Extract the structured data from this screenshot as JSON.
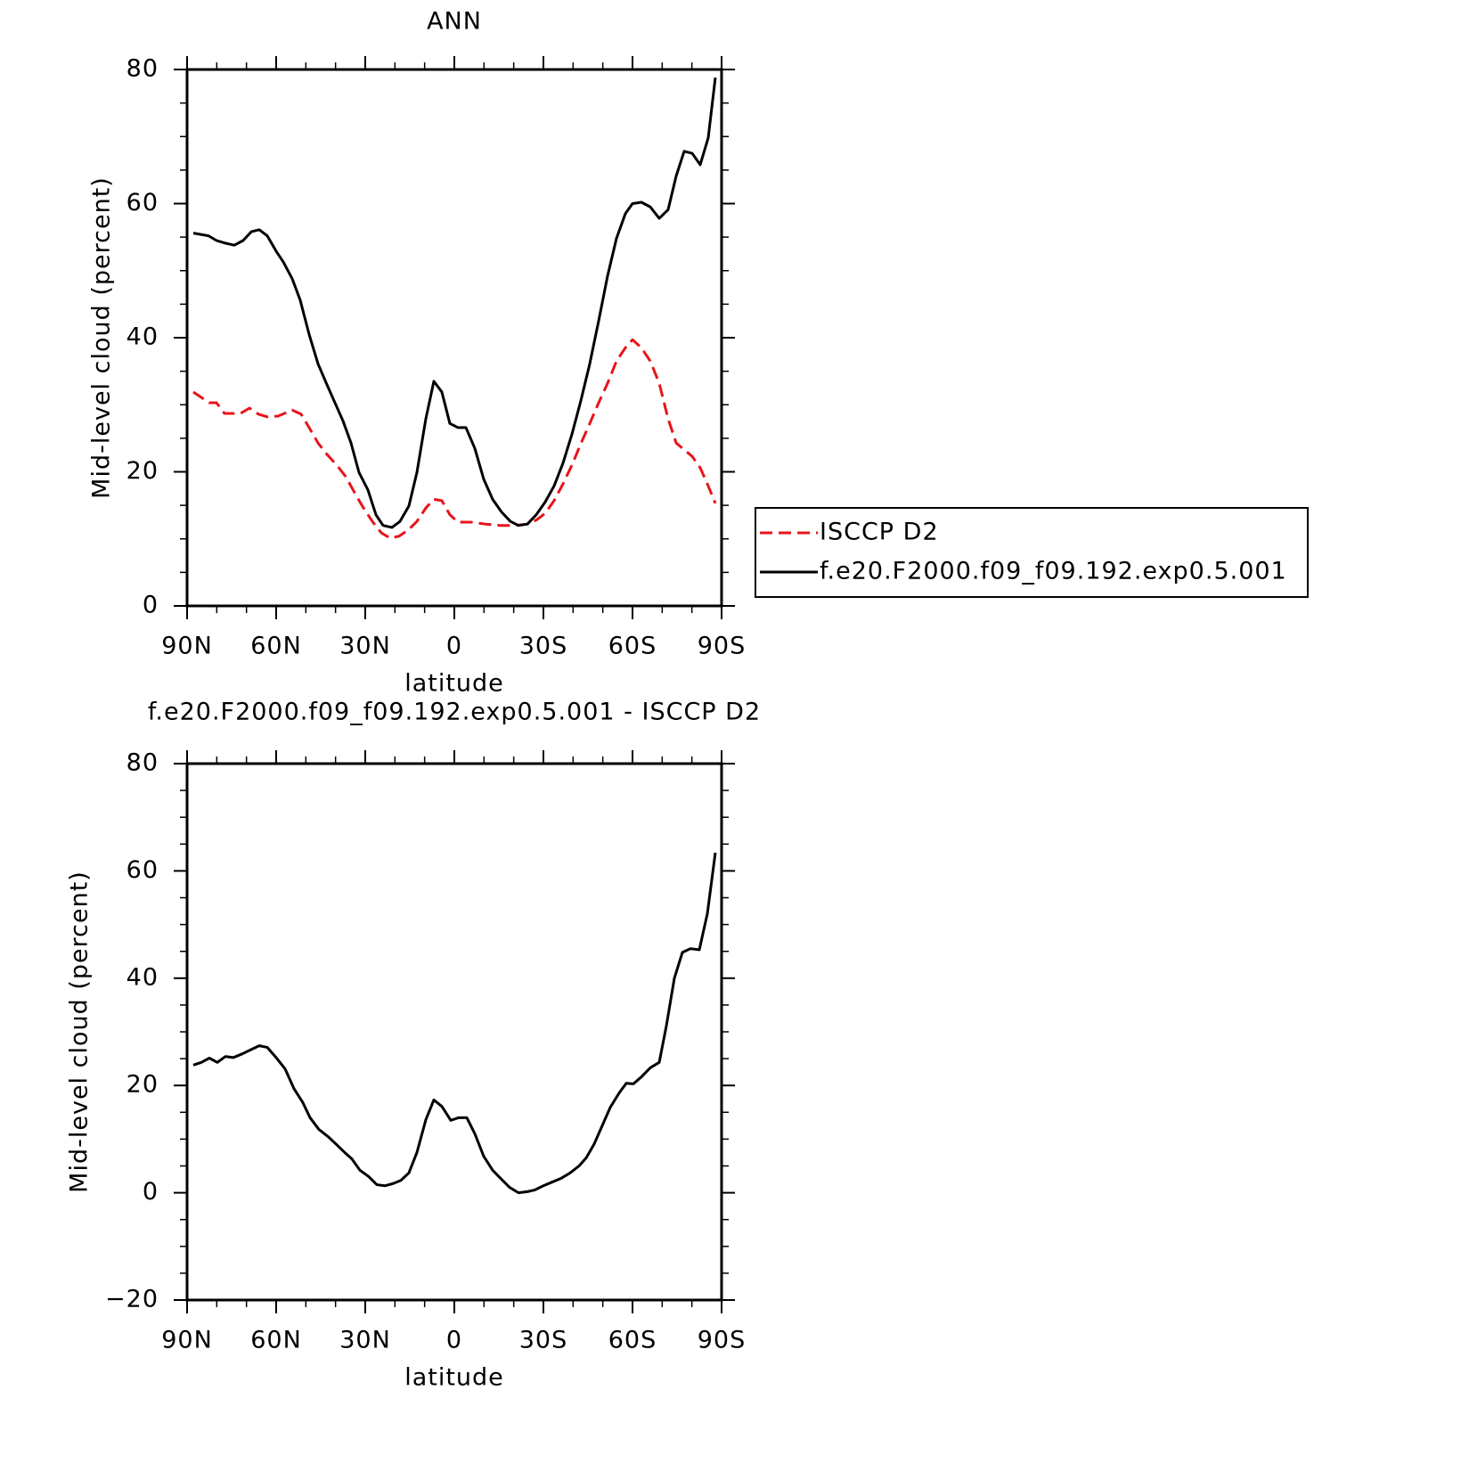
{
  "chart_data": [
    {
      "type": "line",
      "title": "ANN",
      "xlabel": "latitude",
      "ylabel": "Mid-level cloud (percent)",
      "xlim": [
        90,
        -90
      ],
      "ylim": [
        0,
        80
      ],
      "xticks": [
        {
          "value": 90,
          "label": "90N"
        },
        {
          "value": 60,
          "label": "60N"
        },
        {
          "value": 30,
          "label": "30N"
        },
        0,
        {
          "value": -30,
          "label": "30S"
        },
        {
          "value": -60,
          "label": "60S"
        },
        {
          "value": -90,
          "label": "90S"
        }
      ],
      "xminorticks": [
        80,
        70,
        50,
        40,
        20,
        10,
        -10,
        -20,
        -40,
        -50,
        -70,
        -80
      ],
      "yticks": [
        0,
        20,
        40,
        60,
        80
      ],
      "yminorticks": [
        5,
        10,
        15,
        25,
        30,
        35,
        45,
        50,
        55,
        65,
        70,
        75
      ],
      "legend": "right",
      "series": [
        {
          "name": "ISCCP D2",
          "color": "#e8141a",
          "dash": true,
          "x": [
            87.9,
            82.5,
            80.1,
            77.4,
            72,
            69,
            66,
            63,
            59.4,
            54.6,
            51.6,
            48.9,
            45.9,
            42.9,
            39.6,
            36.6,
            33.6,
            30.6,
            27.6,
            24.6,
            21.6,
            18.6,
            15.6,
            12.6,
            9.6,
            6.9,
            4.2,
            1.5,
            -1.2,
            -5.4,
            -10.5,
            -15.6,
            -20.4,
            -24.6,
            -27.6,
            -30.6,
            -33.6,
            -36.6,
            -39.6,
            -42.6,
            -45.6,
            -48.6,
            -51.6,
            -54.6,
            -57.6,
            -60,
            -63,
            -66,
            -69,
            -72,
            -74.7,
            -77.4,
            -80.1,
            -82.8,
            -85.5,
            -87.9
          ],
          "values": [
            31.9,
            30.3,
            30.3,
            28.7,
            28.7,
            29.5,
            28.6,
            28.2,
            28.3,
            29.2,
            28.6,
            26.6,
            24.3,
            22.6,
            21.0,
            19.3,
            16.9,
            14.6,
            12.6,
            10.9,
            10.1,
            10.4,
            11.3,
            12.6,
            14.6,
            15.9,
            15.7,
            13.6,
            12.5,
            12.5,
            12.2,
            12.0,
            12.0,
            12.2,
            12.8,
            13.8,
            15.7,
            18.2,
            21.0,
            24.2,
            27.2,
            30.3,
            33.2,
            36.5,
            38.5,
            39.7,
            38.5,
            36.5,
            33.2,
            27.9,
            24.3,
            23.3,
            22.3,
            20.6,
            17.9,
            15.3
          ]
        },
        {
          "name": "f.e20.F2000.f09_f09.192.exp0.5.001",
          "color": "#000000",
          "dash": false,
          "x": [
            87.9,
            82.8,
            80.1,
            77.1,
            74.1,
            71.1,
            68.4,
            65.7,
            63,
            60,
            57.6,
            54.6,
            51.9,
            48.9,
            45.9,
            42.9,
            37.5,
            34.8,
            32.1,
            29.1,
            26.4,
            24,
            21,
            18.3,
            15.3,
            12.6,
            9.6,
            6.9,
            4.2,
            1.5,
            -1.2,
            -3.9,
            -6.9,
            -9.9,
            -12.9,
            -15.9,
            -18.9,
            -21.6,
            -24.6,
            -27.6,
            -30.6,
            -33.6,
            -36.6,
            -39.6,
            -42.6,
            -45.6,
            -48.6,
            -51.6,
            -54.6,
            -57.6,
            -60,
            -63,
            -66,
            -69,
            -72,
            -74.7,
            -77.4,
            -80.1,
            -82.8,
            -85.5,
            -87.9
          ],
          "values": [
            55.6,
            55.2,
            54.5,
            54.1,
            53.8,
            54.5,
            55.8,
            56.1,
            55.2,
            52.9,
            51.3,
            48.8,
            45.6,
            40.5,
            36.1,
            33.0,
            27.6,
            24.3,
            19.9,
            17.3,
            13.6,
            12.0,
            11.7,
            12.6,
            14.9,
            19.9,
            27.9,
            33.5,
            31.9,
            27.2,
            26.6,
            26.6,
            23.5,
            18.9,
            15.9,
            14.0,
            12.6,
            12.0,
            12.2,
            13.6,
            15.5,
            17.9,
            21.3,
            25.6,
            30.6,
            36.1,
            42.5,
            49.2,
            54.8,
            58.5,
            60.0,
            60.2,
            59.5,
            57.8,
            59.1,
            64.1,
            67.8,
            67.5,
            65.8,
            69.8,
            78.8
          ]
        }
      ]
    },
    {
      "type": "line",
      "title": "f.e20.F2000.f09_f09.192.exp0.5.001 - ISCCP D2",
      "xlabel": "latitude",
      "ylabel": "Mid-level cloud (percent)",
      "xlim": [
        90,
        -90
      ],
      "ylim": [
        -20,
        80
      ],
      "xticks": [
        {
          "value": 90,
          "label": "90N"
        },
        {
          "value": 60,
          "label": "60N"
        },
        {
          "value": 30,
          "label": "30N"
        },
        0,
        {
          "value": -30,
          "label": "30S"
        },
        {
          "value": -60,
          "label": "60S"
        },
        {
          "value": -90,
          "label": "90S"
        }
      ],
      "xminorticks": [
        80,
        70,
        50,
        40,
        20,
        10,
        -10,
        -20,
        -40,
        -50,
        -70,
        -80
      ],
      "yticks": [
        {
          "value": -20,
          "label": "−20"
        },
        0,
        20,
        40,
        60,
        80
      ],
      "yminorticks": [
        -15,
        -10,
        -5,
        5,
        10,
        15,
        25,
        30,
        35,
        45,
        50,
        55,
        65,
        70,
        75
      ],
      "series": [
        {
          "color": "#000000",
          "dash": false,
          "x": [
            87.9,
            85.2,
            82.5,
            79.8,
            77.1,
            74.4,
            71.4,
            68.4,
            65.7,
            63,
            60,
            57,
            54,
            51,
            48.6,
            45.6,
            42.6,
            39.9,
            36.9,
            34.5,
            31.8,
            28.8,
            26.1,
            23.4,
            20.7,
            18,
            15.3,
            12.6,
            9.6,
            6.9,
            4.2,
            1.2,
            -1.5,
            -4.2,
            -6.9,
            -9.9,
            -12.9,
            -15.9,
            -18.6,
            -21.6,
            -24.6,
            -27,
            -30,
            -33,
            -36,
            -39,
            -42,
            -44.4,
            -47.1,
            -49.8,
            -52.5,
            -55.5,
            -57.9,
            -60.3,
            -63,
            -66,
            -69,
            -71.4,
            -74.1,
            -76.8,
            -79.5,
            -82.5,
            -85.2,
            -87.9
          ],
          "values": [
            23.8,
            24.3,
            25.1,
            24.3,
            25.4,
            25.2,
            25.9,
            26.7,
            27.4,
            27.1,
            25.2,
            23.1,
            19.4,
            16.8,
            14.0,
            11.8,
            10.5,
            9.1,
            7.5,
            6.3,
            4.2,
            3.0,
            1.5,
            1.3,
            1.7,
            2.3,
            3.7,
            7.5,
            13.6,
            17.3,
            16.1,
            13.5,
            14.0,
            14.0,
            11.0,
            6.8,
            4.2,
            2.5,
            1.0,
            0.0,
            0.2,
            0.5,
            1.3,
            2.0,
            2.7,
            3.7,
            5.0,
            6.5,
            9.1,
            12.5,
            15.9,
            18.6,
            20.4,
            20.3,
            21.6,
            23.3,
            24.3,
            31.1,
            40.0,
            44.8,
            45.5,
            45.3,
            52.0,
            63.4
          ]
        }
      ]
    }
  ]
}
